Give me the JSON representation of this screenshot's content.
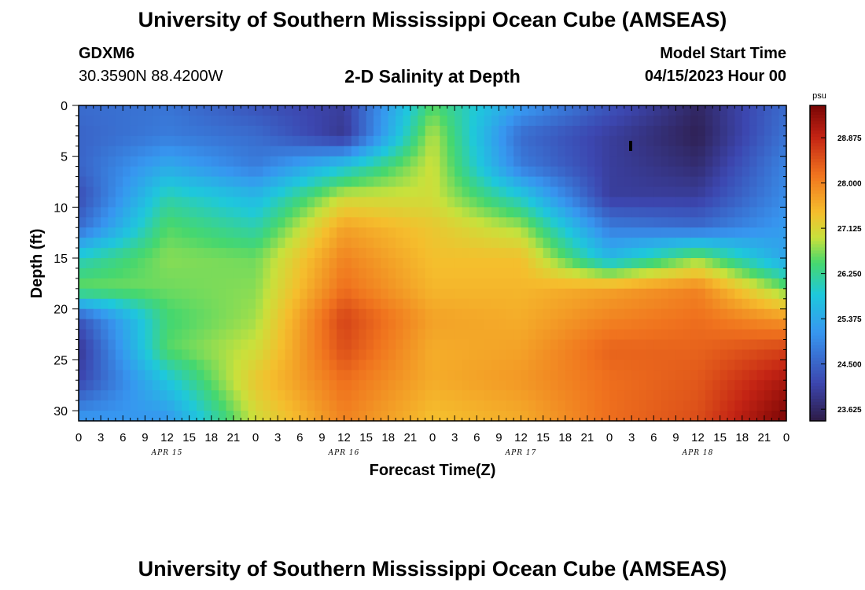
{
  "header": {
    "title": "University of Southern Mississippi Ocean Cube (AMSEAS)",
    "station_id": "GDXM6",
    "station_coords": "30.3590N  88.4200W",
    "start_label": "Model Start Time",
    "start_value": "04/15/2023 Hour 00"
  },
  "footer": {
    "title": "University of Southern Mississippi Ocean Cube (AMSEAS)"
  },
  "chart_data": {
    "type": "heatmap",
    "title": "2-D Salinity at Depth",
    "xlabel": "Forecast Time(Z)",
    "ylabel": "Depth (ft)",
    "units": "psu",
    "x_ticks": [
      "0",
      "3",
      "6",
      "9",
      "12",
      "15",
      "18",
      "21",
      "0",
      "3",
      "6",
      "9",
      "12",
      "15",
      "18",
      "21",
      "0",
      "3",
      "6",
      "9",
      "12",
      "15",
      "18",
      "21",
      "0",
      "3",
      "6",
      "9",
      "12",
      "15",
      "18",
      "21",
      "0"
    ],
    "day_labels": [
      {
        "label": "APR 15",
        "hour": 12
      },
      {
        "label": "APR 16",
        "hour": 36
      },
      {
        "label": "APR 17",
        "hour": 60
      },
      {
        "label": "APR 18",
        "hour": 84
      }
    ],
    "xlim_hours": [
      0,
      96
    ],
    "y_ticks": [
      0,
      5,
      10,
      15,
      20,
      25,
      30
    ],
    "ylim_ft": [
      0,
      31
    ],
    "colorbar_ticks": [
      "28.875",
      "28.000",
      "27.125",
      "26.250",
      "25.375",
      "24.500",
      "23.625"
    ],
    "color_range_psu": [
      23.4,
      29.5
    ],
    "grid_hours": [
      0,
      12,
      24,
      36,
      48,
      60,
      72,
      84,
      96
    ],
    "grid_depths_ft": [
      0,
      3,
      6,
      9,
      12,
      15,
      18,
      21,
      24,
      27,
      31
    ],
    "salinity_psu": [
      [
        24.6,
        24.5,
        24.5,
        24.2,
        24.6,
        26.0,
        26.6,
        24.3,
        23.9,
        24.1,
        25.2
      ],
      [
        24.7,
        24.8,
        25.4,
        26.1,
        26.5,
        26.7,
        26.6,
        26.4,
        26.5,
        25.8,
        25.1
      ],
      [
        24.3,
        24.6,
        24.8,
        25.6,
        26.1,
        26.6,
        26.7,
        26.8,
        27.0,
        27.3,
        27.0
      ],
      [
        24.0,
        23.9,
        25.8,
        27.0,
        27.7,
        28.0,
        28.2,
        28.6,
        28.5,
        28.2,
        28.0
      ],
      [
        26.5,
        26.9,
        27.0,
        27.0,
        27.3,
        27.4,
        27.5,
        27.7,
        27.6,
        27.6,
        27.4
      ],
      [
        25.2,
        24.6,
        24.8,
        25.9,
        26.8,
        27.4,
        27.5,
        27.6,
        27.7,
        27.8,
        27.6
      ],
      [
        24.3,
        24.0,
        24.0,
        24.0,
        24.8,
        25.6,
        27.7,
        28.0,
        28.3,
        28.2,
        28.2
      ],
      [
        23.6,
        23.5,
        23.7,
        24.0,
        24.6,
        26.7,
        28.0,
        28.2,
        28.3,
        28.4,
        28.5
      ],
      [
        24.6,
        24.7,
        24.9,
        25.0,
        25.2,
        25.3,
        26.6,
        27.8,
        28.6,
        29.1,
        29.5
      ]
    ]
  }
}
